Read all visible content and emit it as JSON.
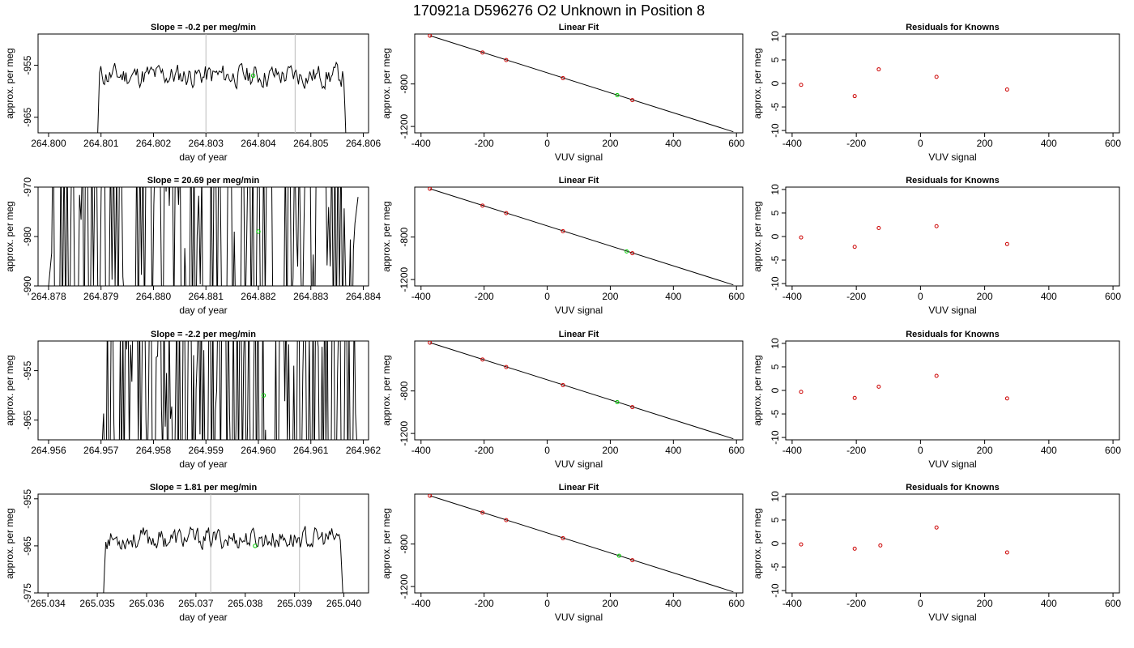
{
  "title": "170921a      D596276   O2 Unknown in Position  8",
  "colors": {
    "known": "#cc0000",
    "unknown": "#00cc00",
    "line": "#000000",
    "vline": "#bbbbbb"
  },
  "chart_data": [
    {
      "type": "line",
      "row": 0,
      "col": 0,
      "title": "Slope =  -0.2  per meg/min",
      "xlabel": "day of year",
      "ylabel": "approx. per meg",
      "xlim": [
        264.7998,
        264.8061
      ],
      "ylim": [
        -968,
        -949
      ],
      "xticks": [
        "264.800",
        "264.801",
        "264.802",
        "264.803",
        "264.804",
        "264.805",
        "264.806"
      ],
      "yticks": [
        "-955",
        "-965"
      ],
      "ytick_values": [
        -955,
        -965
      ],
      "vlines": [
        264.803,
        264.8047
      ],
      "unknown_point": [
        264.8039,
        -957
      ],
      "trace": {
        "x_start": 264.8009,
        "x_end": 264.8057,
        "level": -957,
        "spread": 3.5,
        "tail_start": -980,
        "tail_end": -978,
        "style": "smooth",
        "seed": 11
      }
    },
    {
      "type": "scatter",
      "row": 0,
      "col": 1,
      "title": "Linear Fit",
      "xlabel": "VUV signal",
      "ylabel": "approx. per meg",
      "xlim": [
        -420,
        620
      ],
      "ylim": [
        -1260,
        -330
      ],
      "xticks": [
        "-400",
        "-200",
        "0",
        "200",
        "400",
        "600"
      ],
      "xtick_values": [
        -400,
        -200,
        0,
        200,
        400,
        600
      ],
      "yticks": [
        "-800",
        "-1200"
      ],
      "ytick_values": [
        -800,
        -1200
      ],
      "fit_line": [
        [
          -372,
          -345
        ],
        [
          590,
          -1250
        ]
      ],
      "known_points": [
        [
          -372,
          -346
        ],
        [
          -205,
          -504
        ],
        [
          -130,
          -575
        ],
        [
          50,
          -745
        ],
        [
          270,
          -952
        ]
      ],
      "unknown_point": [
        222,
        -905
      ]
    },
    {
      "type": "scatter",
      "row": 0,
      "col": 2,
      "title": "Residuals for Knowns",
      "xlabel": "VUV signal",
      "ylabel": "approx. per meg",
      "xlim": [
        -420,
        620
      ],
      "ylim": [
        -10.5,
        10.5
      ],
      "xticks": [
        "-400",
        "-200",
        "0",
        "200",
        "400",
        "600"
      ],
      "xtick_values": [
        -400,
        -200,
        0,
        200,
        400,
        600
      ],
      "yticks": [
        "-10",
        "-5",
        "0",
        "5",
        "10"
      ],
      "ytick_values": [
        -10,
        -5,
        0,
        5,
        10
      ],
      "points": [
        [
          -372,
          -0.3
        ],
        [
          -205,
          -2.7
        ],
        [
          -130,
          3.0
        ],
        [
          50,
          1.4
        ],
        [
          270,
          -1.3
        ]
      ]
    },
    {
      "type": "line",
      "row": 1,
      "col": 0,
      "title": "Slope =  20.69  per meg/min",
      "xlabel": "day of year",
      "ylabel": "approx. per meg",
      "xlim": [
        264.8778,
        264.8841
      ],
      "ylim": [
        -990,
        -970
      ],
      "xticks": [
        "264.878",
        "264.879",
        "264.880",
        "264.881",
        "264.882",
        "264.883",
        "264.884"
      ],
      "yticks": [
        "-970",
        "-980",
        "-990"
      ],
      "ytick_values": [
        -970,
        -980,
        -990
      ],
      "vlines": [],
      "unknown_point": [
        264.882,
        -979
      ],
      "trace": {
        "x_start": 264.878,
        "x_end": 264.8839,
        "level": -980,
        "spread": 30,
        "tail_start": -990,
        "tail_end": -972,
        "style": "wild",
        "seed": 23
      }
    },
    {
      "type": "scatter",
      "row": 1,
      "col": 1,
      "title": "Linear Fit",
      "xlabel": "VUV signal",
      "ylabel": "approx. per meg",
      "xlim": [
        -420,
        620
      ],
      "ylim": [
        -1260,
        -330
      ],
      "xticks": [
        "-400",
        "-200",
        "0",
        "200",
        "400",
        "600"
      ],
      "xtick_values": [
        -400,
        -200,
        0,
        200,
        400,
        600
      ],
      "yticks": [
        "-800",
        "-1200"
      ],
      "ytick_values": [
        -800,
        -1200
      ],
      "fit_line": [
        [
          -372,
          -345
        ],
        [
          590,
          -1250
        ]
      ],
      "known_points": [
        [
          -372,
          -346
        ],
        [
          -205,
          -504
        ],
        [
          -130,
          -575
        ],
        [
          50,
          -745
        ],
        [
          270,
          -952
        ]
      ],
      "unknown_point": [
        252,
        -935
      ]
    },
    {
      "type": "scatter",
      "row": 1,
      "col": 2,
      "title": "Residuals for Knowns",
      "xlabel": "VUV signal",
      "ylabel": "approx. per meg",
      "xlim": [
        -420,
        620
      ],
      "ylim": [
        -10.5,
        10.5
      ],
      "xticks": [
        "-400",
        "-200",
        "0",
        "200",
        "400",
        "600"
      ],
      "xtick_values": [
        -400,
        -200,
        0,
        200,
        400,
        600
      ],
      "yticks": [
        "-10",
        "-5",
        "0",
        "5",
        "10"
      ],
      "ytick_values": [
        -10,
        -5,
        0,
        5,
        10
      ],
      "points": [
        [
          -372,
          -0.2
        ],
        [
          -205,
          -2.2
        ],
        [
          -130,
          1.8
        ],
        [
          50,
          2.2
        ],
        [
          270,
          -1.6
        ]
      ]
    },
    {
      "type": "line",
      "row": 2,
      "col": 0,
      "title": "Slope =  -2.2  per meg/min",
      "xlabel": "day of year",
      "ylabel": "approx. per meg",
      "xlim": [
        264.9558,
        264.9621
      ],
      "ylim": [
        -969,
        -949
      ],
      "xticks": [
        "264.956",
        "264.957",
        "264.958",
        "264.959",
        "264.960",
        "264.961",
        "264.962"
      ],
      "yticks": [
        "-955",
        "-965"
      ],
      "ytick_values": [
        -955,
        -965
      ],
      "vlines": [],
      "unknown_point": [
        264.9601,
        -960
      ],
      "trace": {
        "x_start": 264.957,
        "x_end": 264.9619,
        "level": -958,
        "spread": 30,
        "tail_start": -975,
        "tail_end": -975,
        "style": "wild",
        "seed": 37
      }
    },
    {
      "type": "scatter",
      "row": 2,
      "col": 1,
      "title": "Linear Fit",
      "xlabel": "VUV signal",
      "ylabel": "approx. per meg",
      "xlim": [
        -420,
        620
      ],
      "ylim": [
        -1260,
        -330
      ],
      "xticks": [
        "-400",
        "-200",
        "0",
        "200",
        "400",
        "600"
      ],
      "xtick_values": [
        -400,
        -200,
        0,
        200,
        400,
        600
      ],
      "yticks": [
        "-800",
        "-1200"
      ],
      "ytick_values": [
        -800,
        -1200
      ],
      "fit_line": [
        [
          -372,
          -345
        ],
        [
          590,
          -1250
        ]
      ],
      "known_points": [
        [
          -372,
          -346
        ],
        [
          -205,
          -504
        ],
        [
          -130,
          -575
        ],
        [
          50,
          -745
        ],
        [
          270,
          -952
        ]
      ],
      "unknown_point": [
        222,
        -905
      ]
    },
    {
      "type": "scatter",
      "row": 2,
      "col": 2,
      "title": "Residuals for Knowns",
      "xlabel": "VUV signal",
      "ylabel": "approx. per meg",
      "xlim": [
        -420,
        620
      ],
      "ylim": [
        -10.5,
        10.5
      ],
      "xticks": [
        "-400",
        "-200",
        "0",
        "200",
        "400",
        "600"
      ],
      "xtick_values": [
        -400,
        -200,
        0,
        200,
        400,
        600
      ],
      "yticks": [
        "-10",
        "-5",
        "0",
        "5",
        "10"
      ],
      "ytick_values": [
        -10,
        -5,
        0,
        5,
        10
      ],
      "points": [
        [
          -372,
          -0.3
        ],
        [
          -205,
          -1.6
        ],
        [
          -130,
          0.8
        ],
        [
          50,
          3.1
        ],
        [
          270,
          -1.7
        ]
      ]
    },
    {
      "type": "line",
      "row": 3,
      "col": 0,
      "title": "Slope =  1.81  per meg/min",
      "xlabel": "day of year",
      "ylabel": "approx. per meg",
      "xlim": [
        265.0338,
        265.0405
      ],
      "ylim": [
        -975,
        -954
      ],
      "xticks": [
        "265.034",
        "265.035",
        "265.036",
        "265.037",
        "265.038",
        "265.039",
        "265.040"
      ],
      "yticks": [
        "-955",
        "-965",
        "-975"
      ],
      "ytick_values": [
        -955,
        -965,
        -975
      ],
      "vlines": [
        265.0373,
        265.0391
      ],
      "unknown_point": [
        265.0382,
        -965
      ],
      "trace": {
        "x_start": 265.0351,
        "x_end": 265.04,
        "level": -963.5,
        "spread": 3.5,
        "tail_start": -982,
        "tail_end": -980,
        "style": "smooth",
        "seed": 53
      }
    },
    {
      "type": "scatter",
      "row": 3,
      "col": 1,
      "title": "Linear Fit",
      "xlabel": "VUV signal",
      "ylabel": "approx. per meg",
      "xlim": [
        -420,
        620
      ],
      "ylim": [
        -1260,
        -330
      ],
      "xticks": [
        "-400",
        "-200",
        "0",
        "200",
        "400",
        "600"
      ],
      "xtick_values": [
        -400,
        -200,
        0,
        200,
        400,
        600
      ],
      "yticks": [
        "-800",
        "-1200"
      ],
      "ytick_values": [
        -800,
        -1200
      ],
      "fit_line": [
        [
          -372,
          -345
        ],
        [
          590,
          -1250
        ]
      ],
      "known_points": [
        [
          -372,
          -346
        ],
        [
          -205,
          -504
        ],
        [
          -130,
          -575
        ],
        [
          50,
          -745
        ],
        [
          270,
          -952
        ]
      ],
      "unknown_point": [
        228,
        -910
      ]
    },
    {
      "type": "scatter",
      "row": 3,
      "col": 2,
      "title": "Residuals for Knowns",
      "xlabel": "VUV signal",
      "ylabel": "approx. per meg",
      "xlim": [
        -420,
        620
      ],
      "ylim": [
        -10.5,
        10.5
      ],
      "xticks": [
        "-400",
        "-200",
        "0",
        "200",
        "400",
        "600"
      ],
      "xtick_values": [
        -400,
        -200,
        0,
        200,
        400,
        600
      ],
      "yticks": [
        "-10",
        "-5",
        "0",
        "5",
        "10"
      ],
      "ytick_values": [
        -10,
        -5,
        0,
        5,
        10
      ],
      "points": [
        [
          -372,
          -0.2
        ],
        [
          -205,
          -1.1
        ],
        [
          -125,
          -0.4
        ],
        [
          50,
          3.4
        ],
        [
          270,
          -1.9
        ]
      ]
    }
  ]
}
